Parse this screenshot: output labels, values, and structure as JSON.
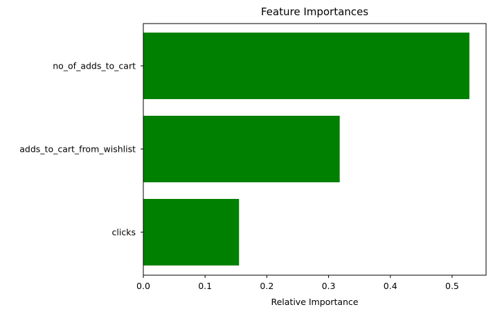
{
  "chart_data": {
    "type": "bar",
    "orientation": "horizontal",
    "title": "Feature Importances",
    "xlabel": "Relative Importance",
    "ylabel": "",
    "categories": [
      "clicks",
      "adds_to_cart_from_wishlist",
      "no_of_adds_to_cart"
    ],
    "values": [
      0.155,
      0.318,
      0.528
    ],
    "xlim": [
      0,
      0.555
    ],
    "xticks": [
      "0.0",
      "0.1",
      "0.2",
      "0.3",
      "0.4",
      "0.5"
    ],
    "grid": false,
    "legend": "none",
    "bar_color": "#008000"
  }
}
